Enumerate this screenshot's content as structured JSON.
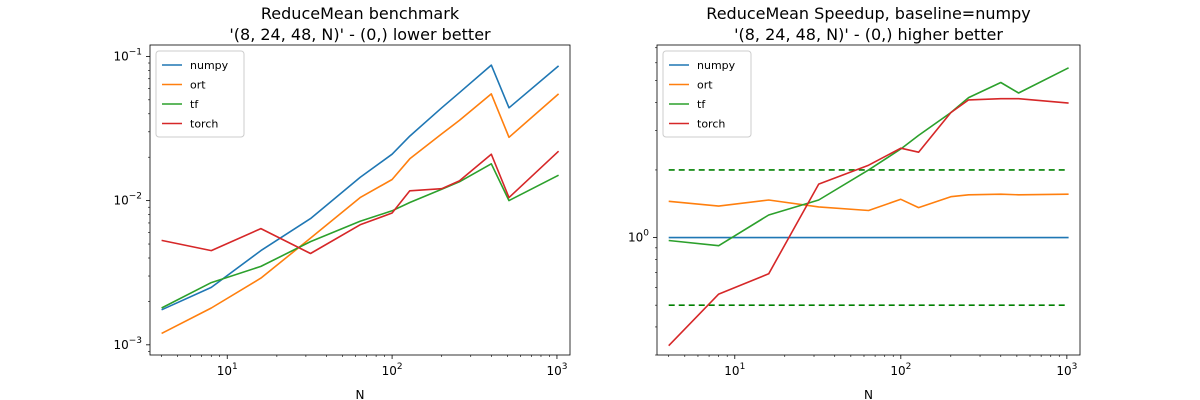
{
  "chart_data": [
    {
      "type": "line",
      "title": "ReduceMean benchmark",
      "subtitle": "'(8, 24, 48, N)' - (0,) lower better",
      "xlabel": "N",
      "ylabel": "",
      "xscale": "log",
      "yscale": "log",
      "xlim": [
        3.4,
        1200
      ],
      "ylim": [
        0.00085,
        0.12
      ],
      "grid": false,
      "legend_position": "top-left",
      "x_ticks": [
        {
          "value": 10,
          "base": "10",
          "exp": "1"
        },
        {
          "value": 100,
          "base": "10",
          "exp": "2"
        },
        {
          "value": 1000,
          "base": "10",
          "exp": "3"
        }
      ],
      "y_ticks": [
        {
          "value": 0.001,
          "base": "10",
          "exp": "−3"
        },
        {
          "value": 0.01,
          "base": "10",
          "exp": "−2"
        },
        {
          "value": 0.1,
          "base": "10",
          "exp": "−1"
        }
      ],
      "x": [
        4,
        8,
        16,
        32,
        64,
        100,
        128,
        200,
        256,
        400,
        512,
        1024
      ],
      "series": [
        {
          "name": "numpy",
          "color": "#1f77b4",
          "values": [
            0.00175,
            0.0025,
            0.0045,
            0.0075,
            0.0145,
            0.021,
            0.028,
            0.044,
            0.056,
            0.087,
            0.044,
            0.086
          ]
        },
        {
          "name": "ort",
          "color": "#ff7f0e",
          "values": [
            0.0012,
            0.0018,
            0.0029,
            0.0055,
            0.0105,
            0.014,
            0.0195,
            0.029,
            0.036,
            0.055,
            0.0275,
            0.055
          ]
        },
        {
          "name": "tf",
          "color": "#2ca02c",
          "values": [
            0.0018,
            0.0027,
            0.0035,
            0.0052,
            0.0072,
            0.0085,
            0.0097,
            0.012,
            0.0135,
            0.018,
            0.01,
            0.015
          ]
        },
        {
          "name": "torch",
          "color": "#d62728",
          "values": [
            0.0053,
            0.0045,
            0.0064,
            0.0043,
            0.0068,
            0.0082,
            0.0117,
            0.0121,
            0.0137,
            0.021,
            0.0105,
            0.022
          ]
        }
      ]
    },
    {
      "type": "line",
      "title": "ReduceMean Speedup, baseline=numpy",
      "subtitle": "'(8, 24, 48, N)' - (0,) higher better",
      "xlabel": "N",
      "ylabel": "",
      "xscale": "log",
      "yscale": "log",
      "xlim": [
        3.4,
        1200
      ],
      "ylim": [
        0.3,
        7.2
      ],
      "grid": false,
      "legend_position": "top-left",
      "x_ticks": [
        {
          "value": 10,
          "base": "10",
          "exp": "1"
        },
        {
          "value": 100,
          "base": "10",
          "exp": "2"
        },
        {
          "value": 1000,
          "base": "10",
          "exp": "3"
        }
      ],
      "y_ticks": [
        {
          "value": 1,
          "base": "10",
          "exp": "0"
        }
      ],
      "reference_lines": [
        {
          "y": 2,
          "style": "dashed",
          "color": "#008000"
        },
        {
          "y": 0.5,
          "style": "dashed",
          "color": "#008000"
        }
      ],
      "x": [
        4,
        8,
        16,
        32,
        64,
        100,
        128,
        200,
        256,
        400,
        512,
        1024
      ],
      "series": [
        {
          "name": "numpy",
          "color": "#1f77b4",
          "values": [
            1,
            1,
            1,
            1,
            1,
            1,
            1,
            1,
            1,
            1,
            1,
            1
          ]
        },
        {
          "name": "ort",
          "color": "#ff7f0e",
          "values": [
            1.45,
            1.38,
            1.47,
            1.37,
            1.32,
            1.48,
            1.36,
            1.52,
            1.55,
            1.56,
            1.55,
            1.56
          ]
        },
        {
          "name": "tf",
          "color": "#2ca02c",
          "values": [
            0.97,
            0.92,
            1.26,
            1.47,
            2.0,
            2.48,
            2.85,
            3.6,
            4.2,
            4.9,
            4.4,
            5.7
          ]
        },
        {
          "name": "torch",
          "color": "#d62728",
          "values": [
            0.33,
            0.56,
            0.69,
            1.73,
            2.1,
            2.5,
            2.4,
            3.6,
            4.1,
            4.15,
            4.15,
            3.97
          ]
        }
      ]
    }
  ]
}
